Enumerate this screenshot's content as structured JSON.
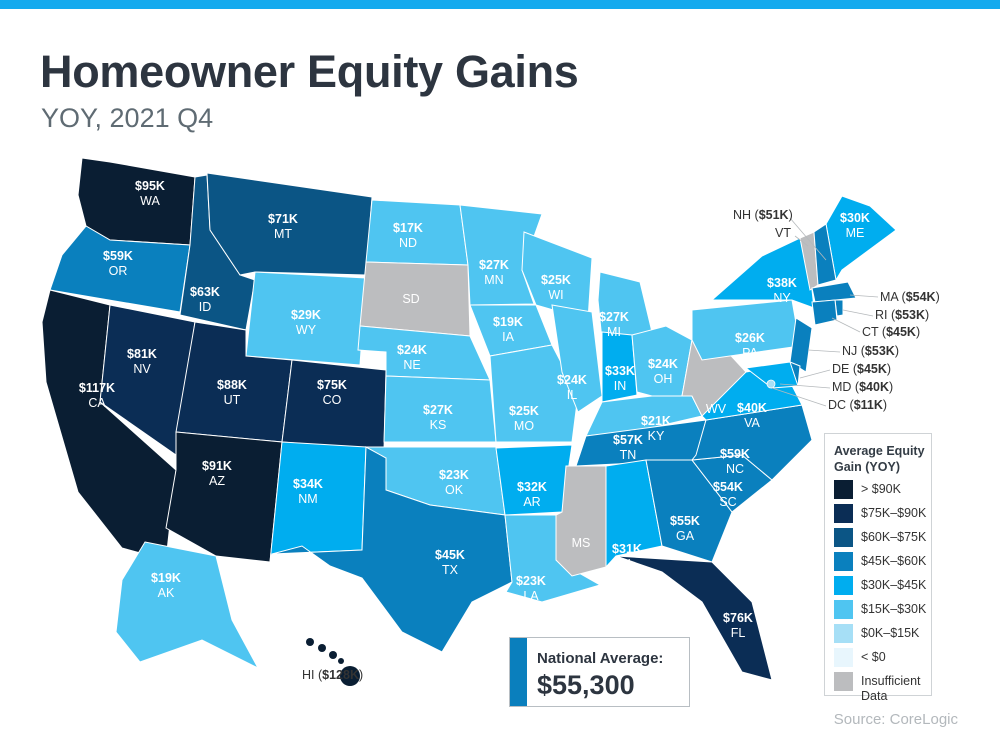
{
  "title": "Homeowner Equity Gains",
  "subtitle": "YOY, 2021 Q4",
  "source": "Source: CoreLogic",
  "national_average": {
    "label": "National Average:",
    "value": "$55,300"
  },
  "legend": {
    "title": "Average Equity Gain (YOY)",
    "bins": [
      {
        "key": "gt90",
        "label": "> $90K",
        "color": "#0a1e33"
      },
      {
        "key": "75_90",
        "label": "$75K–$90K",
        "color": "#0b2d55"
      },
      {
        "key": "60_75",
        "label": "$60K–$75K",
        "color": "#0b5585"
      },
      {
        "key": "45_60",
        "label": "$45K–$60K",
        "color": "#0a80be"
      },
      {
        "key": "30_45",
        "label": "$30K–$45K",
        "color": "#00adef"
      },
      {
        "key": "15_30",
        "label": "$15K–$30K",
        "color": "#4fc5f1"
      },
      {
        "key": "0_15",
        "label": "$0K–$15K",
        "color": "#a6dff6"
      },
      {
        "key": "lt0",
        "label": "< $0",
        "color": "#e8f6fd"
      },
      {
        "key": "na",
        "label": "Insufficient Data",
        "color": "#bcbdbf"
      }
    ]
  },
  "states": [
    {
      "abbr": "WA",
      "value": "$95K",
      "bin": "gt90"
    },
    {
      "abbr": "OR",
      "value": "$59K",
      "bin": "45_60"
    },
    {
      "abbr": "CA",
      "value": "$117K",
      "bin": "gt90"
    },
    {
      "abbr": "NV",
      "value": "$81K",
      "bin": "75_90"
    },
    {
      "abbr": "ID",
      "value": "$63K",
      "bin": "60_75"
    },
    {
      "abbr": "MT",
      "value": "$71K",
      "bin": "60_75"
    },
    {
      "abbr": "WY",
      "value": "$29K",
      "bin": "15_30"
    },
    {
      "abbr": "UT",
      "value": "$88K",
      "bin": "75_90"
    },
    {
      "abbr": "AZ",
      "value": "$91K",
      "bin": "gt90"
    },
    {
      "abbr": "CO",
      "value": "$75K",
      "bin": "75_90"
    },
    {
      "abbr": "NM",
      "value": "$34K",
      "bin": "30_45"
    },
    {
      "abbr": "ND",
      "value": "$17K",
      "bin": "15_30"
    },
    {
      "abbr": "SD",
      "value": "",
      "bin": "na"
    },
    {
      "abbr": "NE",
      "value": "$24K",
      "bin": "15_30"
    },
    {
      "abbr": "KS",
      "value": "$27K",
      "bin": "15_30"
    },
    {
      "abbr": "OK",
      "value": "$23K",
      "bin": "15_30"
    },
    {
      "abbr": "TX",
      "value": "$45K",
      "bin": "45_60"
    },
    {
      "abbr": "MN",
      "value": "$27K",
      "bin": "15_30"
    },
    {
      "abbr": "IA",
      "value": "$19K",
      "bin": "15_30"
    },
    {
      "abbr": "MO",
      "value": "$25K",
      "bin": "15_30"
    },
    {
      "abbr": "AR",
      "value": "$32K",
      "bin": "30_45"
    },
    {
      "abbr": "LA",
      "value": "$23K",
      "bin": "15_30"
    },
    {
      "abbr": "WI",
      "value": "$25K",
      "bin": "15_30"
    },
    {
      "abbr": "IL",
      "value": "$24K",
      "bin": "15_30"
    },
    {
      "abbr": "MI",
      "value": "$27K",
      "bin": "15_30"
    },
    {
      "abbr": "IN",
      "value": "$33K",
      "bin": "30_45"
    },
    {
      "abbr": "OH",
      "value": "$24K",
      "bin": "15_30"
    },
    {
      "abbr": "KY",
      "value": "$21K",
      "bin": "15_30"
    },
    {
      "abbr": "TN",
      "value": "$57K",
      "bin": "45_60"
    },
    {
      "abbr": "MS",
      "value": "",
      "bin": "na"
    },
    {
      "abbr": "AL",
      "value": "$31K",
      "bin": "30_45"
    },
    {
      "abbr": "GA",
      "value": "$55K",
      "bin": "45_60"
    },
    {
      "abbr": "FL",
      "value": "$76K",
      "bin": "75_90"
    },
    {
      "abbr": "SC",
      "value": "$54K",
      "bin": "45_60"
    },
    {
      "abbr": "NC",
      "value": "$59K",
      "bin": "45_60"
    },
    {
      "abbr": "VA",
      "value": "$40K",
      "bin": "30_45"
    },
    {
      "abbr": "WV",
      "value": "",
      "bin": "na"
    },
    {
      "abbr": "PA",
      "value": "$26K",
      "bin": "15_30"
    },
    {
      "abbr": "NY",
      "value": "$38K",
      "bin": "30_45"
    },
    {
      "abbr": "ME",
      "value": "$30K",
      "bin": "30_45"
    },
    {
      "abbr": "AK",
      "value": "$19K",
      "bin": "15_30"
    },
    {
      "abbr": "VT",
      "value": "",
      "bin": "na",
      "callout": true
    },
    {
      "abbr": "NH",
      "value": "$51K",
      "bin": "45_60",
      "callout": true
    },
    {
      "abbr": "MA",
      "value": "$54K",
      "bin": "45_60",
      "callout": true
    },
    {
      "abbr": "RI",
      "value": "$53K",
      "bin": "45_60",
      "callout": true
    },
    {
      "abbr": "CT",
      "value": "$45K",
      "bin": "45_60",
      "callout": true
    },
    {
      "abbr": "NJ",
      "value": "$53K",
      "bin": "45_60",
      "callout": true
    },
    {
      "abbr": "DE",
      "value": "$45K",
      "bin": "45_60",
      "callout": true
    },
    {
      "abbr": "MD",
      "value": "$40K",
      "bin": "30_45",
      "callout": true
    },
    {
      "abbr": "DC",
      "value": "$11K",
      "bin": "0_15",
      "callout": true
    },
    {
      "abbr": "HI",
      "value": "$128K",
      "bin": "gt90",
      "callout": true
    }
  ]
}
